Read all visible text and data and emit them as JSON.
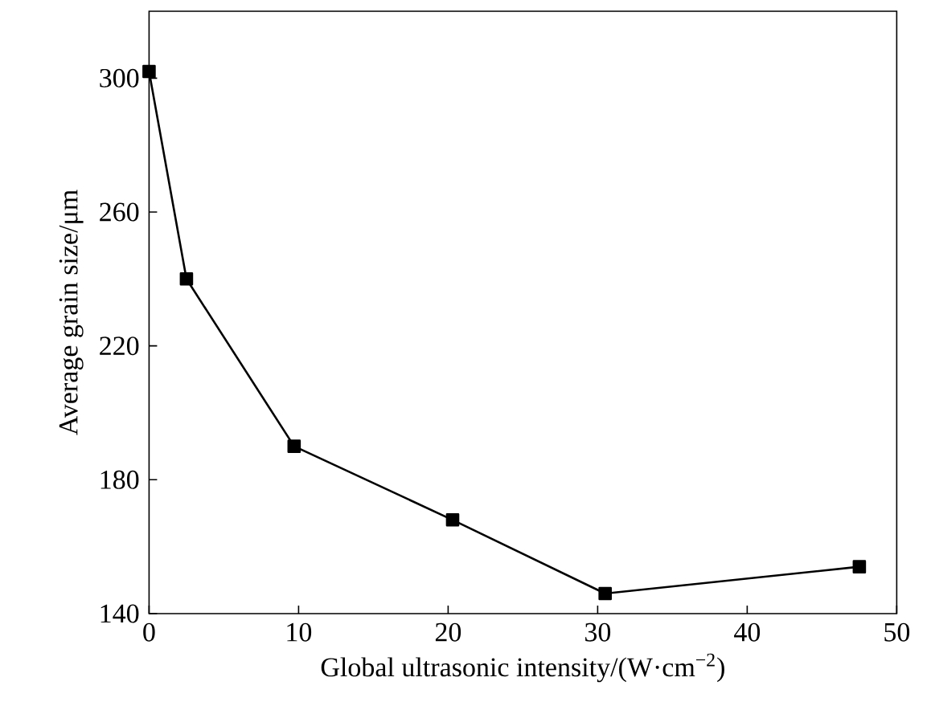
{
  "chart_data": {
    "type": "line",
    "xlabel": "Global ultrasonic intensity/(W·cm$^{−2}$)",
    "ylabel": "Average grain size/μm",
    "series": [
      {
        "color": "#000000",
        "x": [
          0,
          2.5,
          9.7,
          20.3,
          30.5,
          47.5
        ],
        "values": [
          302,
          240,
          190,
          168,
          146,
          154
        ]
      }
    ],
    "xlim": [
      0,
      50
    ],
    "xticks": [
      0,
      10,
      20,
      30,
      40,
      50
    ],
    "ylim": [
      140,
      320
    ],
    "yticks": [
      140,
      180,
      220,
      260,
      300
    ],
    "marker": "square",
    "line_style": "solid"
  }
}
